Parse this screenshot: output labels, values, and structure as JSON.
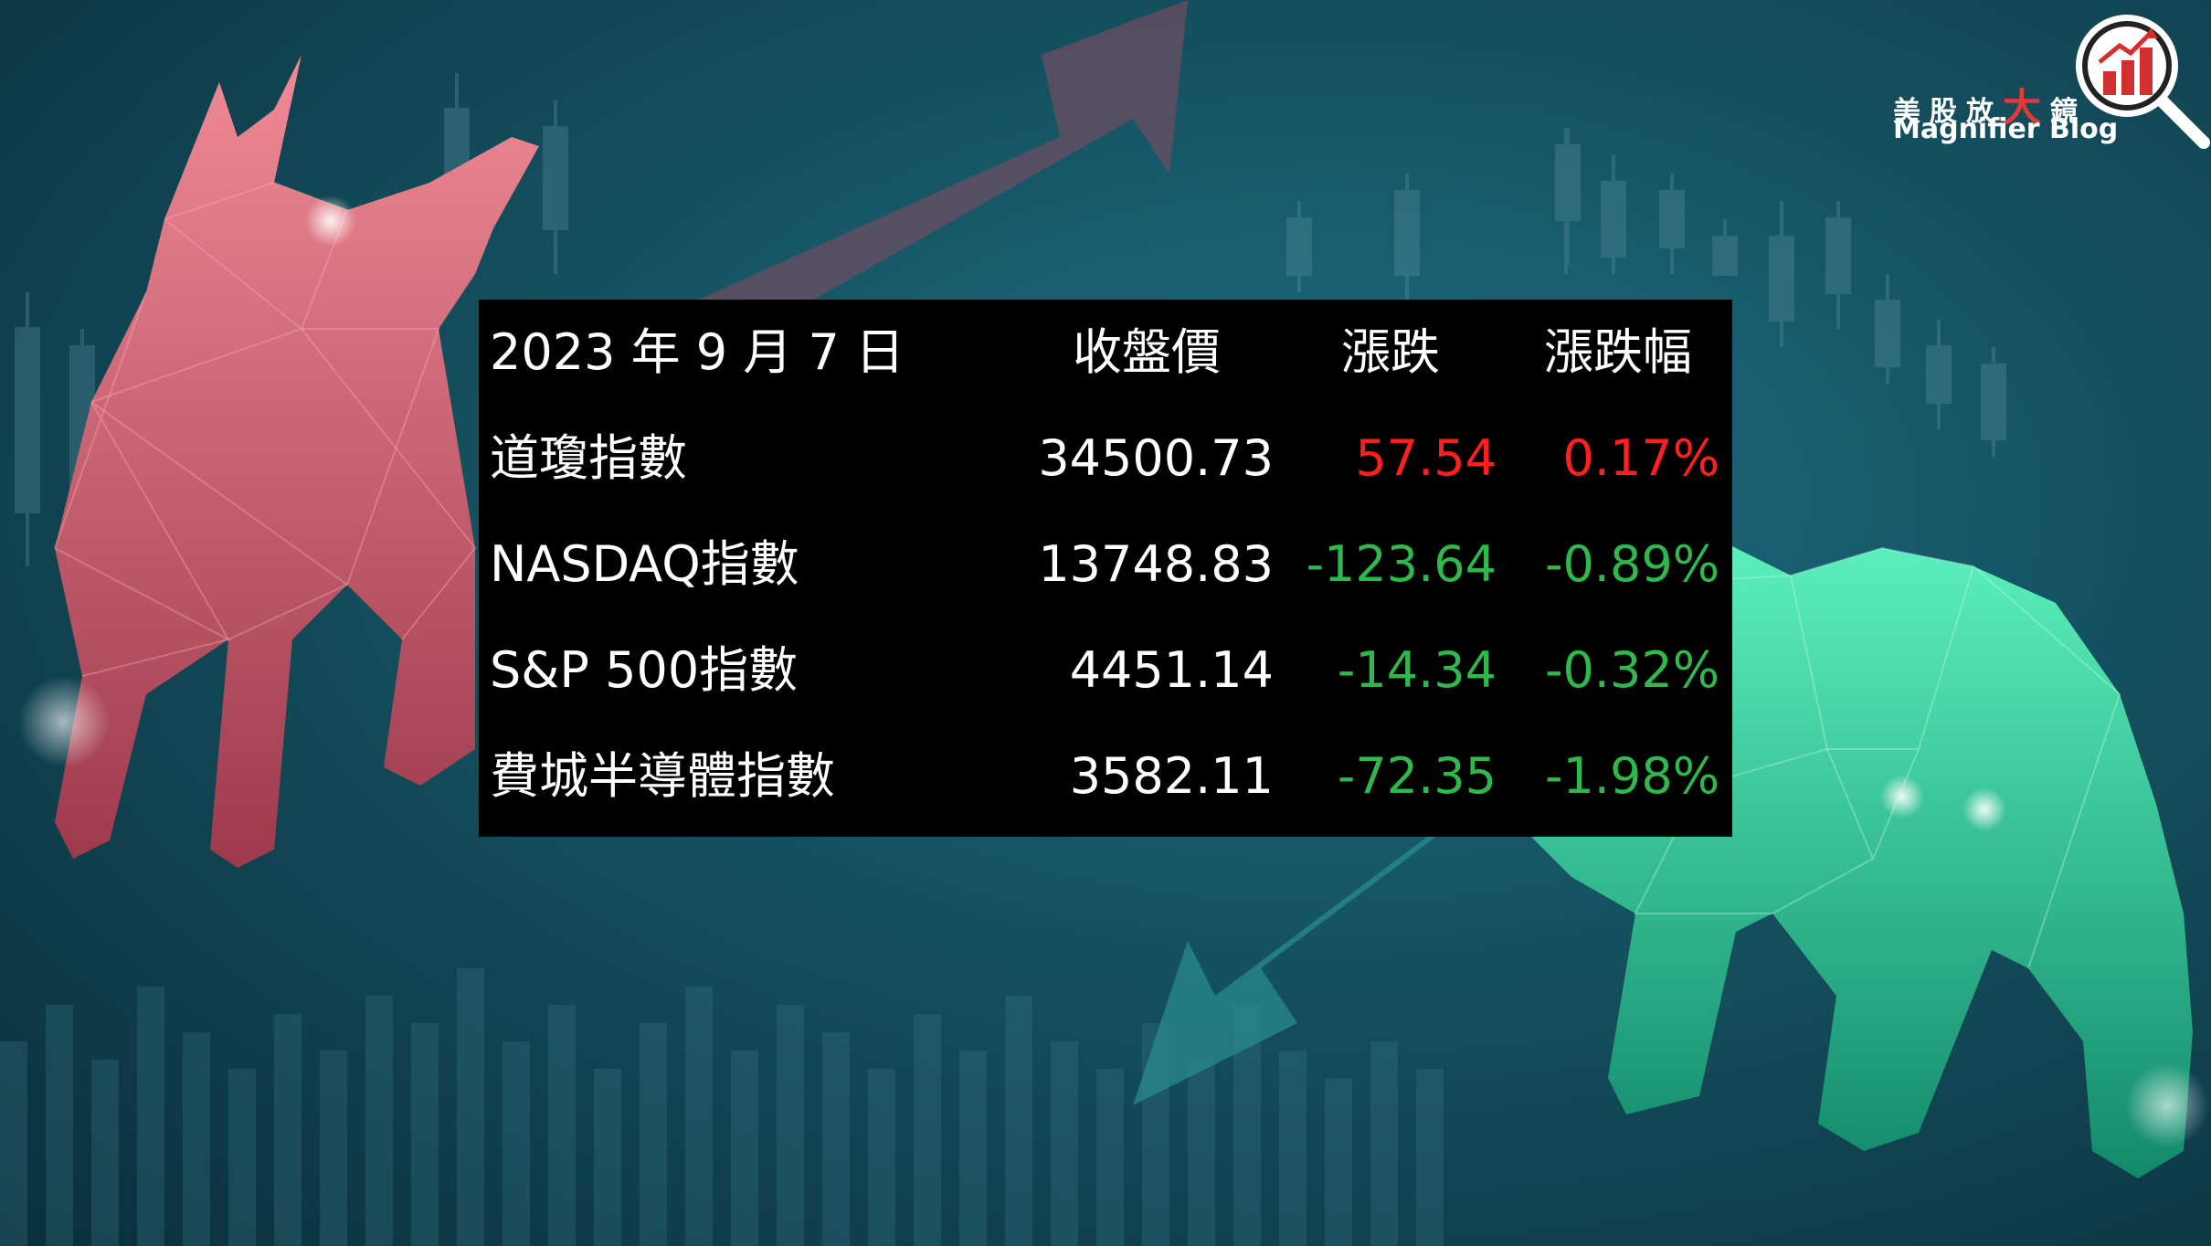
{
  "logo": {
    "cn_prefix": "美股放",
    "cn_big": "大",
    "cn_suffix": "鏡",
    "en": "Magnifier Blog",
    "icon": "magnifier-bar-chart-icon",
    "accent_color": "#e53935"
  },
  "table": {
    "header": {
      "date": "2023 年 9 月 7 日",
      "close": "收盤價",
      "change": "漲跌",
      "pct": "漲跌幅"
    },
    "rows": [
      {
        "name": "道瓊指數",
        "close": "34500.73",
        "change": "57.54",
        "pct": "0.17%",
        "color": "#ff1f1f"
      },
      {
        "name": "NASDAQ指數",
        "close": "13748.83",
        "change": "-123.64",
        "pct": "-0.89%",
        "color": "#2fb84b"
      },
      {
        "name": "S&P 500指數",
        "close": "4451.14",
        "change": "-14.34",
        "pct": "-0.32%",
        "color": "#2fb84b"
      },
      {
        "name": "費城半導體指數",
        "close": "3582.11",
        "change": "-72.35",
        "pct": "-1.98%",
        "color": "#2fb84b"
      }
    ]
  },
  "background": {
    "bull_color": "#e0707e",
    "bear_color": "#3fd9a4",
    "up_arrow_color": "#8a4a60",
    "down_arrow_color": "#2a8f8f"
  }
}
